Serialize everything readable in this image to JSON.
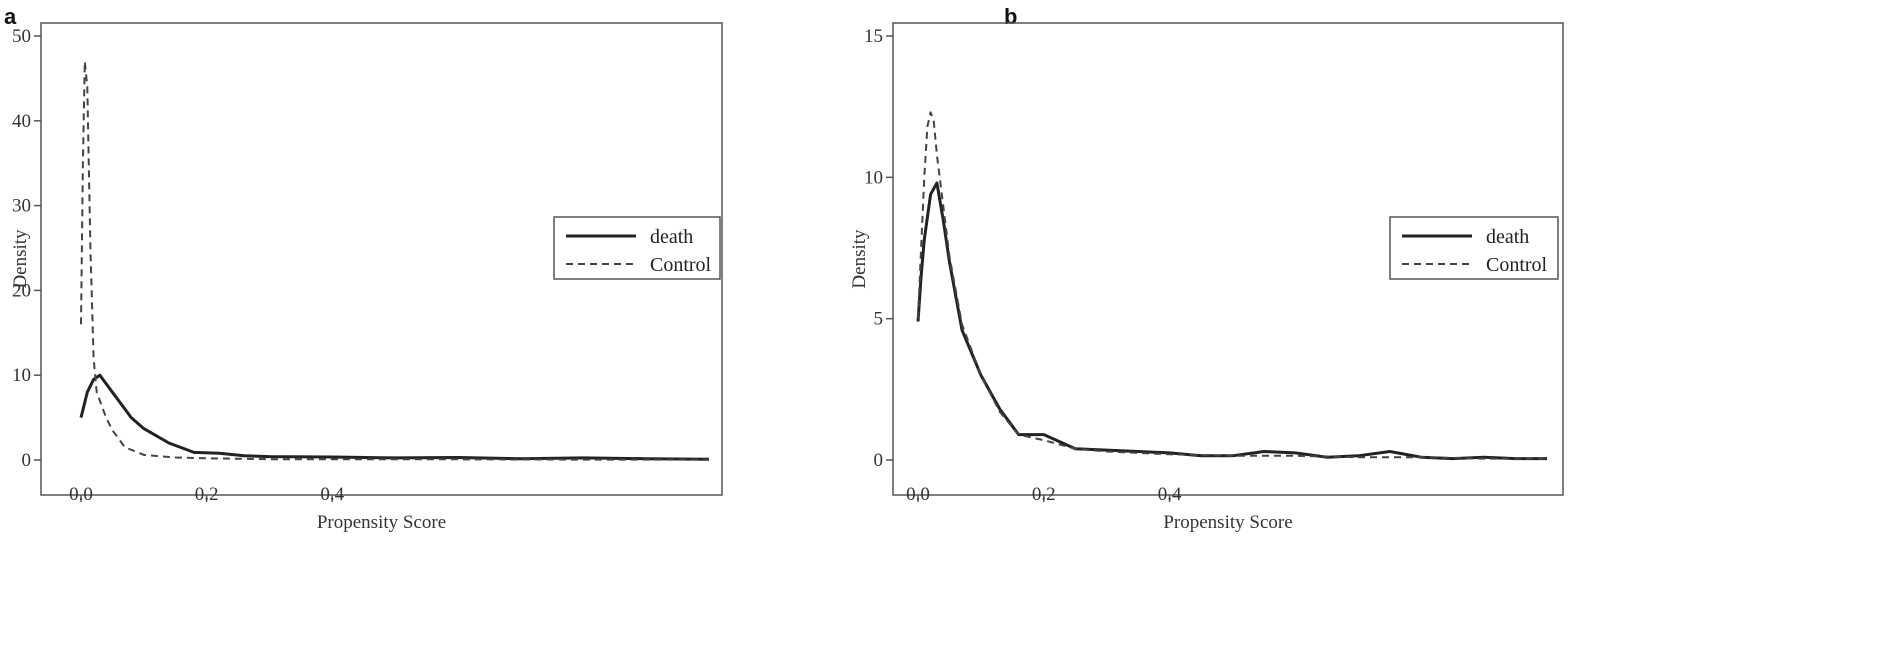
{
  "panels": [
    {
      "letter": "a"
    },
    {
      "letter": "b"
    }
  ],
  "chart_data": [
    {
      "type": "line",
      "xlabel": "Propensity Score",
      "ylabel": "Density",
      "xlim": [
        0,
        1.0
      ],
      "ylim": [
        0,
        50
      ],
      "xticks": [
        0.0,
        0.2,
        0.4
      ],
      "xtick_labels": [
        "0.0",
        "0.2",
        "0.4"
      ],
      "yticks": [
        0,
        10,
        20,
        30,
        40,
        50
      ],
      "ytick_labels": [
        "0",
        "10",
        "20",
        "30",
        "40",
        "50"
      ],
      "legend_position": "right",
      "grid": false,
      "series": [
        {
          "name": "death",
          "style": "solid",
          "x": [
            0.0,
            0.01,
            0.02,
            0.03,
            0.05,
            0.08,
            0.1,
            0.14,
            0.18,
            0.22,
            0.26,
            0.3,
            0.4,
            0.5,
            0.6,
            0.7,
            0.8,
            0.9,
            1.0
          ],
          "y": [
            5,
            8,
            9.5,
            10,
            8,
            5,
            3.7,
            2,
            0.9,
            0.8,
            0.5,
            0.4,
            0.35,
            0.25,
            0.3,
            0.15,
            0.25,
            0.15,
            0.1
          ]
        },
        {
          "name": "Control",
          "style": "dashed",
          "x": [
            0.0,
            0.003,
            0.006,
            0.01,
            0.015,
            0.02,
            0.025,
            0.03,
            0.04,
            0.05,
            0.07,
            0.1,
            0.15,
            0.2,
            0.3,
            0.4,
            0.5,
            0.6,
            0.7,
            0.8,
            0.9,
            1.0
          ],
          "y": [
            16,
            35,
            47,
            44,
            25,
            12,
            8,
            7,
            5,
            3.5,
            1.5,
            0.6,
            0.3,
            0.2,
            0.1,
            0.1,
            0.08,
            0.08,
            0.06,
            0.05,
            0.05,
            0.04
          ]
        }
      ]
    },
    {
      "type": "line",
      "xlabel": "Propensity Score",
      "ylabel": "Density",
      "xlim": [
        0,
        1.0
      ],
      "ylim": [
        0,
        15
      ],
      "xticks": [
        0.0,
        0.2,
        0.4
      ],
      "xtick_labels": [
        "0.0",
        "0.2",
        "0.4"
      ],
      "yticks": [
        0,
        5,
        10,
        15
      ],
      "ytick_labels": [
        "0",
        "5",
        "10",
        "15"
      ],
      "legend_position": "right",
      "grid": false,
      "series": [
        {
          "name": "death",
          "style": "solid",
          "x": [
            0.0,
            0.005,
            0.01,
            0.02,
            0.03,
            0.04,
            0.05,
            0.07,
            0.1,
            0.13,
            0.16,
            0.2,
            0.22,
            0.25,
            0.3,
            0.35,
            0.4,
            0.45,
            0.5,
            0.55,
            0.6,
            0.65,
            0.7,
            0.75,
            0.8,
            0.85,
            0.9,
            0.95,
            1.0
          ],
          "y": [
            4.9,
            6.5,
            7.8,
            9.4,
            9.8,
            8.5,
            7,
            4.6,
            3,
            1.8,
            0.9,
            0.9,
            0.7,
            0.4,
            0.35,
            0.3,
            0.25,
            0.15,
            0.15,
            0.3,
            0.25,
            0.1,
            0.15,
            0.3,
            0.1,
            0.05,
            0.1,
            0.05,
            0.05
          ]
        },
        {
          "name": "Control",
          "style": "dashed",
          "x": [
            0.0,
            0.005,
            0.01,
            0.015,
            0.02,
            0.025,
            0.03,
            0.04,
            0.05,
            0.07,
            0.1,
            0.13,
            0.16,
            0.2,
            0.25,
            0.3,
            0.4,
            0.5,
            0.6,
            0.7,
            0.8,
            0.9,
            1.0
          ],
          "y": [
            5,
            7.5,
            10,
            11.8,
            12.3,
            12,
            10.8,
            9,
            7.2,
            4.8,
            3,
            1.7,
            0.9,
            0.7,
            0.4,
            0.3,
            0.2,
            0.15,
            0.15,
            0.1,
            0.1,
            0.05,
            0.05
          ]
        }
      ]
    }
  ]
}
